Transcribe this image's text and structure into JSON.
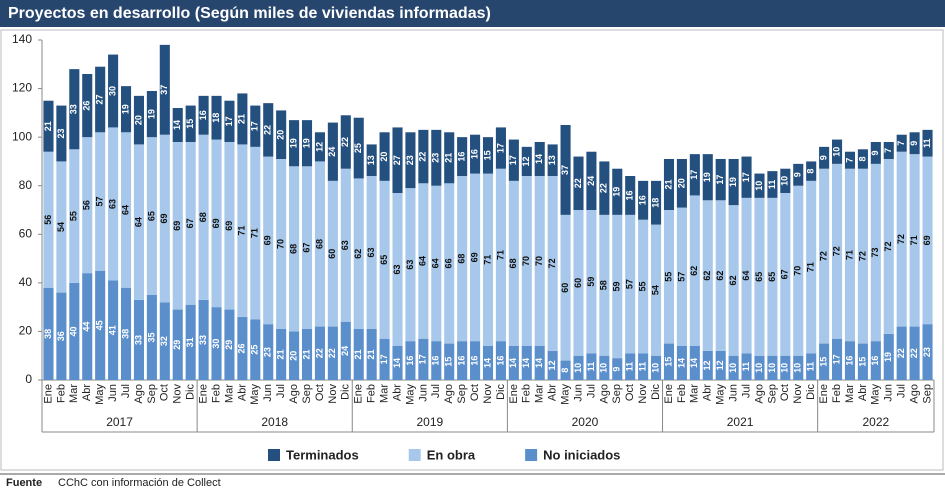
{
  "chart_data": {
    "type": "stacked_bar",
    "title": "Proyectos en desarrollo (Según miles de viviendas informadas)",
    "categories": [
      "Ene",
      "Feb",
      "Mar",
      "Abr",
      "May",
      "Jun",
      "Jul",
      "Ago",
      "Sep",
      "Oct",
      "Nov",
      "Dic",
      "Ene",
      "Feb",
      "Mar",
      "Abr",
      "May",
      "Jun",
      "Jul",
      "Ago",
      "Sep",
      "Oct",
      "Nov",
      "Dic",
      "Ene",
      "Feb",
      "Mar",
      "Abr",
      "May",
      "Jun",
      "Jul",
      "Ago",
      "Sep",
      "Oct",
      "Nov",
      "Dic",
      "Ene",
      "Feb",
      "Mar",
      "Abr",
      "May",
      "Jun",
      "Jul",
      "Ago",
      "Sep",
      "Oct",
      "Nov",
      "Dic",
      "Ene",
      "Feb",
      "Mar",
      "Abr",
      "May",
      "Jun",
      "Jul",
      "Ago",
      "Sep",
      "Oct",
      "Nov",
      "Dic",
      "Ene",
      "Feb",
      "Mar",
      "Abr",
      "May",
      "Jun",
      "Jul",
      "Ago",
      "Sep"
    ],
    "years": [
      "2017",
      "2018",
      "2019",
      "2020",
      "2021",
      "2022"
    ],
    "series": [
      {
        "name": "No iniciados",
        "color": "#5b8fcc",
        "label_color": "#ffffff",
        "values": [
          38,
          36,
          40,
          44,
          45,
          41,
          38,
          33,
          35,
          32,
          29,
          31,
          33,
          30,
          29,
          26,
          25,
          23,
          21,
          20,
          21,
          22,
          22,
          24,
          21,
          21,
          17,
          14,
          16,
          17,
          16,
          15,
          16,
          16,
          14,
          16,
          14,
          14,
          14,
          12,
          8,
          10,
          11,
          10,
          9,
          11,
          11,
          10,
          15,
          14,
          14,
          12,
          12,
          10,
          11,
          10,
          10,
          10,
          10,
          11,
          15,
          17,
          16,
          15,
          16,
          19,
          22,
          22,
          23
        ]
      },
      {
        "name": "En obra",
        "color": "#a7c8eb",
        "label_color": "#111111",
        "values": [
          56,
          54,
          55,
          56,
          57,
          63,
          64,
          64,
          65,
          69,
          69,
          67,
          68,
          69,
          69,
          71,
          71,
          69,
          70,
          68,
          67,
          68,
          60,
          63,
          62,
          63,
          65,
          63,
          63,
          64,
          64,
          66,
          68,
          69,
          71,
          71,
          68,
          70,
          70,
          72,
          60,
          60,
          59,
          58,
          59,
          57,
          55,
          54,
          55,
          57,
          62,
          62,
          62,
          62,
          64,
          65,
          65,
          67,
          70,
          71,
          72,
          72,
          71,
          72,
          73,
          72,
          72,
          71,
          69
        ]
      },
      {
        "name": "Terminados",
        "color": "#24507f",
        "label_color": "#ffffff",
        "values": [
          21,
          23,
          33,
          26,
          27,
          30,
          19,
          20,
          19,
          37,
          14,
          15,
          16,
          18,
          17,
          21,
          17,
          22,
          20,
          19,
          19,
          12,
          24,
          22,
          25,
          13,
          20,
          27,
          23,
          22,
          23,
          21,
          16,
          16,
          15,
          17,
          17,
          12,
          14,
          13,
          37,
          22,
          24,
          22,
          19,
          16,
          16,
          18,
          21,
          20,
          17,
          19,
          17,
          19,
          17,
          10,
          11,
          10,
          9,
          8,
          9,
          10,
          7,
          8,
          9,
          7,
          7,
          9,
          11
        ]
      }
    ],
    "legend_order": [
      2,
      1,
      0
    ],
    "ylim": [
      0,
      140
    ],
    "yticks": [
      0,
      20,
      40,
      60,
      80,
      100,
      120,
      140
    ],
    "grid": false
  },
  "footer": {
    "label": "Fuente",
    "text": "CChC con información de Collect"
  }
}
